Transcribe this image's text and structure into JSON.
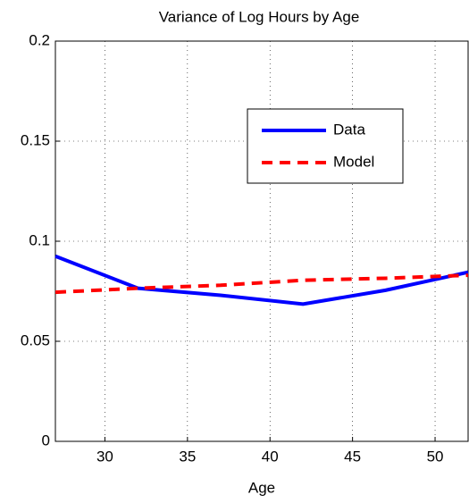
{
  "chart_data": {
    "type": "line",
    "title": "Variance of Log Hours by Age",
    "xlabel": "Age",
    "x": [
      27,
      32,
      37,
      42,
      47,
      52
    ],
    "series": [
      {
        "name": "Data",
        "color": "#0000ff",
        "dash": "solid",
        "values": [
          0.0925,
          0.0765,
          0.073,
          0.0686,
          0.0755,
          0.0845
        ]
      },
      {
        "name": "Model",
        "color": "#ff0000",
        "dash": "dashed",
        "values": [
          0.0745,
          0.0765,
          0.078,
          0.0805,
          0.0815,
          0.083
        ]
      }
    ],
    "xlim": [
      27,
      52
    ],
    "xticks": [
      30,
      35,
      40,
      45,
      50
    ],
    "ylim": [
      0,
      0.2
    ],
    "yticks": [
      0,
      0.05,
      0.1,
      0.15,
      0.2
    ],
    "grid": true,
    "legend": "upper right"
  }
}
